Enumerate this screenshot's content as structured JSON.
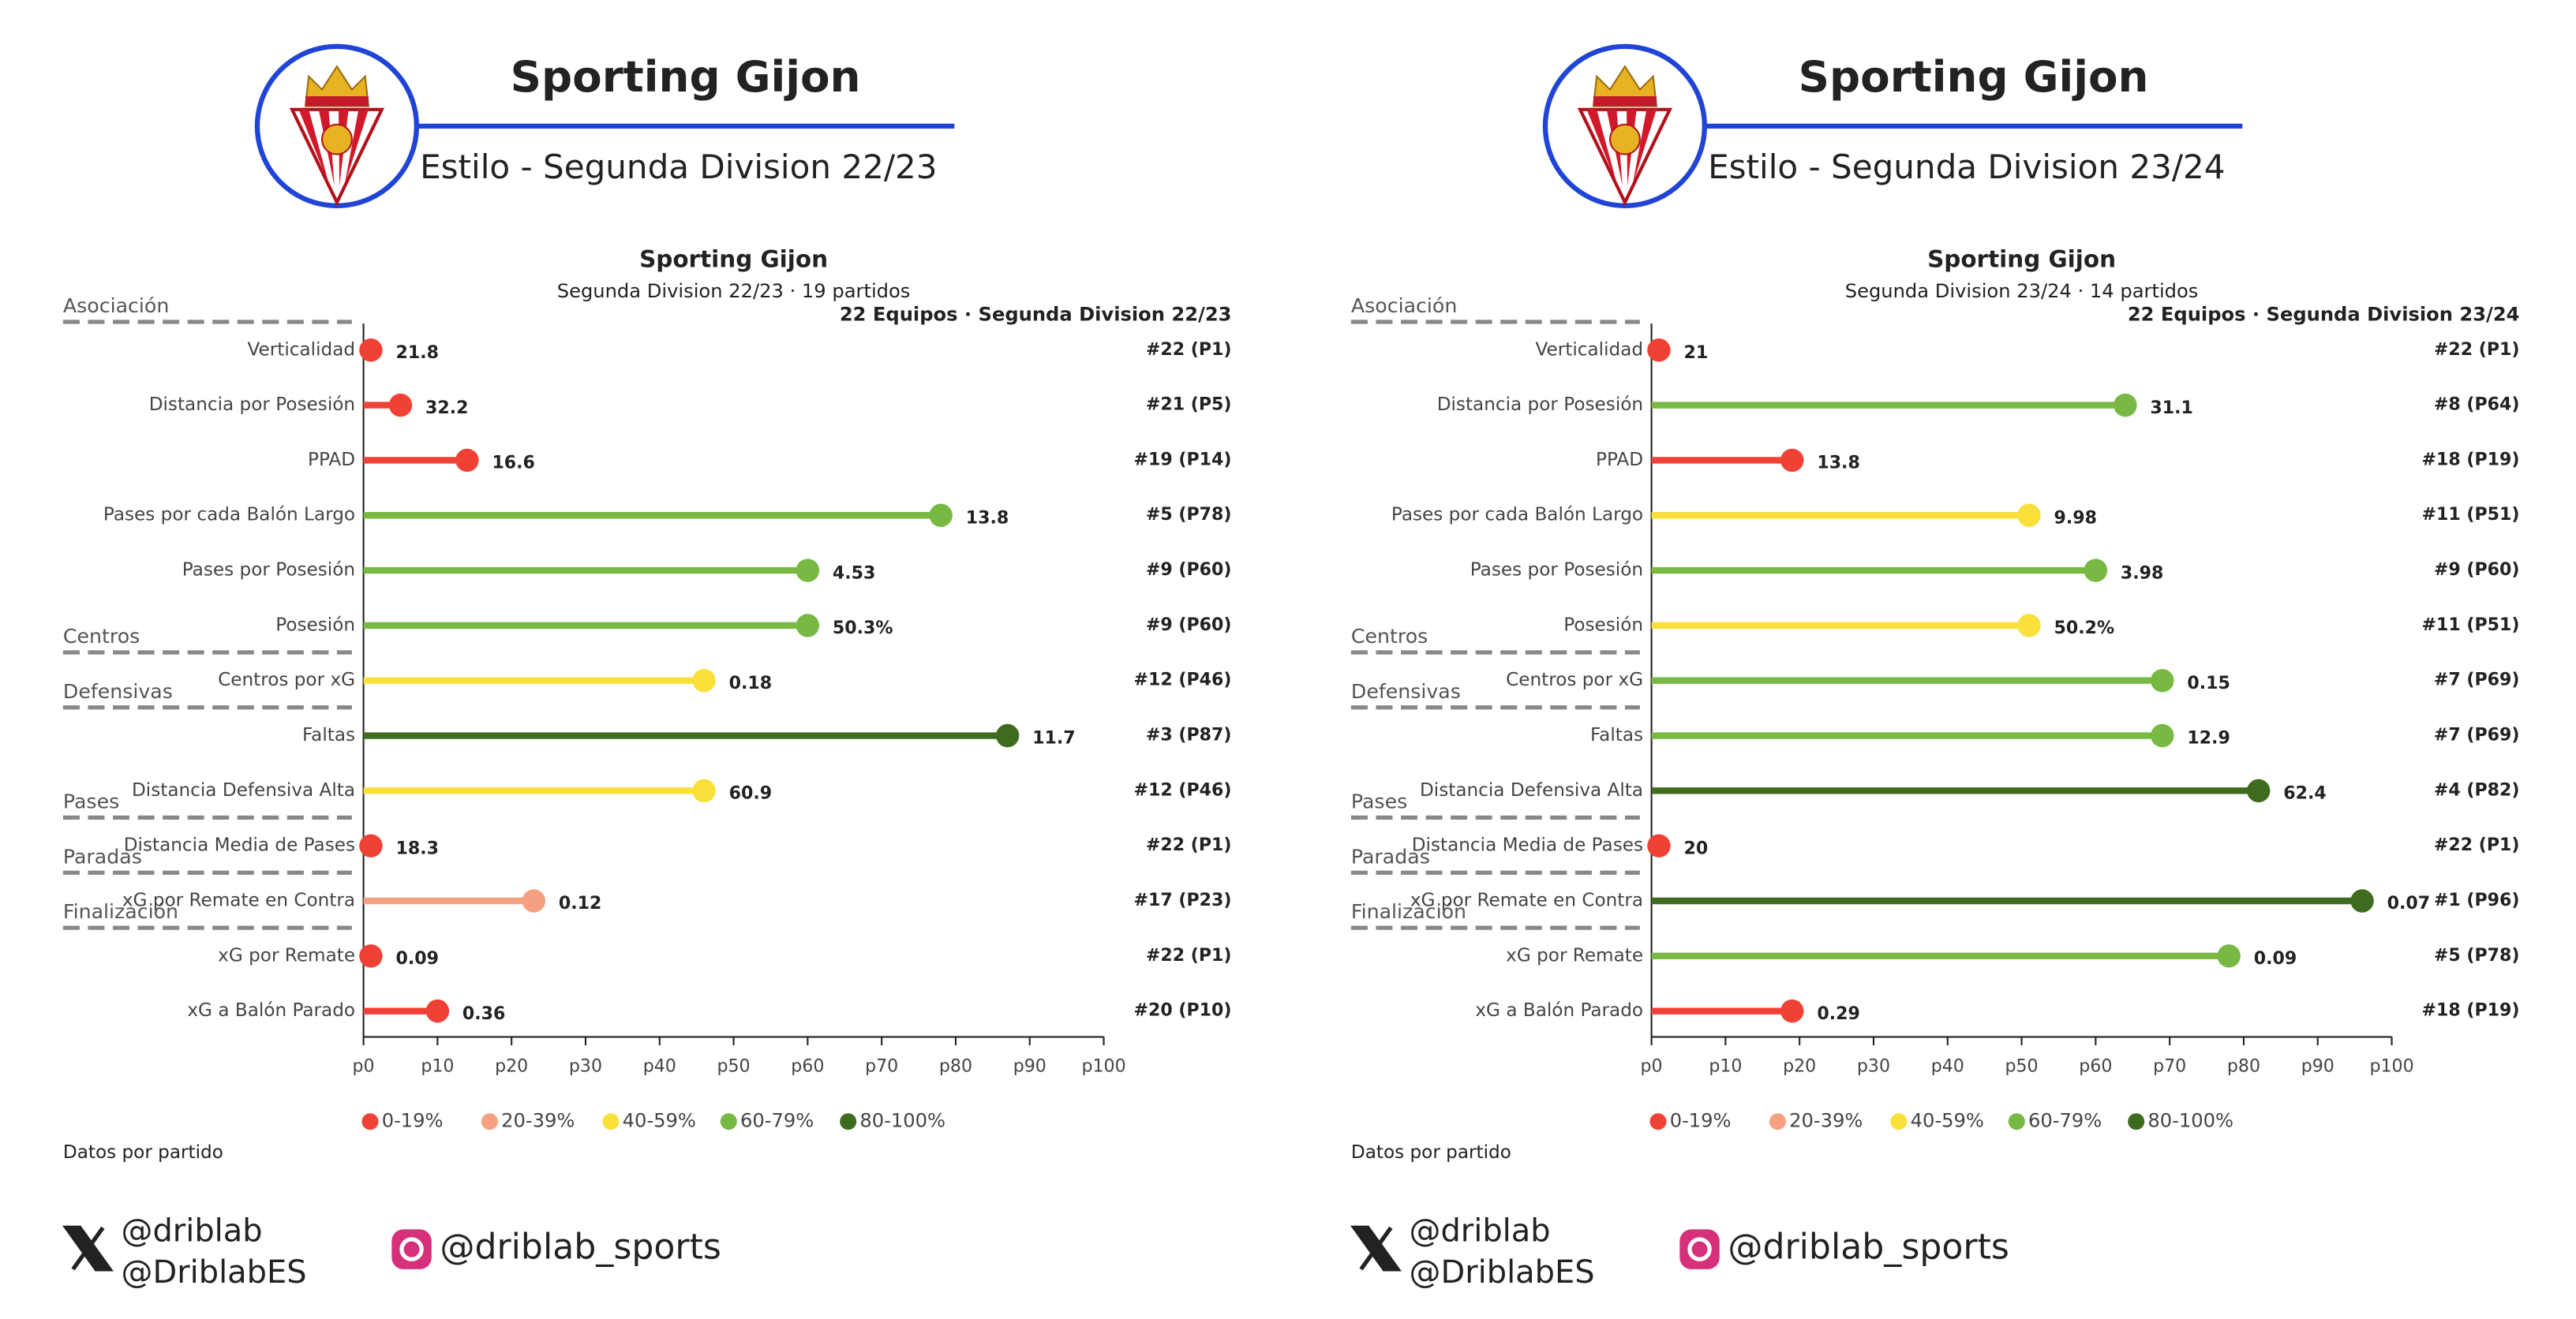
{
  "footer": {
    "x_handle": "@driblab",
    "x_handle_es": "@DriblabES",
    "instagram": "@driblab_sports"
  },
  "chart_data": [
    {
      "type": "lollipop",
      "header_title": "Sporting Gijon",
      "header_subtitle": "Estilo - Segunda Division 22/23",
      "title": "Sporting Gijon",
      "subtitle": "Segunda Division 22/23 · 19 partidos",
      "teams_label": "22 Equipos · Segunda Division 22/23",
      "categories": [
        "Verticalidad",
        "Distancia por Posesión",
        "PPAD",
        "Pases por cada Balón Largo",
        "Pases por Posesión",
        "Posesión",
        "Centros por xG",
        "Faltas",
        "Distancia Defensiva Alta",
        "Distancia Media de Pases",
        "xG por Remate en Contra",
        "xG por Remate",
        "xG a Balón Parado"
      ],
      "values": [
        1,
        5,
        14,
        78,
        60,
        60,
        46,
        87,
        46,
        1,
        23,
        1,
        10
      ],
      "colors": [
        "#ef4135",
        "#ef4135",
        "#ef4135",
        "#78b944",
        "#78b944",
        "#78b944",
        "#f9e03b",
        "#3f6b1f",
        "#f9e03b",
        "#ef4135",
        "#f4a081",
        "#ef4135",
        "#ef4135"
      ],
      "stats": [
        21.8,
        32.2,
        16.6,
        13.8,
        4.53,
        {
          "value": 50.3,
          "label": "50.3%"
        },
        0.18,
        11.7,
        60.9,
        18.3,
        0.12,
        0.09,
        0.36
      ],
      "ranks": [
        "#22 (P1)",
        "#21 (P5)",
        "#19 (P14)",
        "#5 (P78)",
        "#9 (P60)",
        "#9 (P60)",
        "#12 (P46)",
        "#3 (P87)",
        "#12 (P46)",
        "#22 (P1)",
        "#17 (P23)",
        "#22 (P1)",
        "#20 (P10)"
      ],
      "groups": [
        {
          "name": "Asociación",
          "start": 0
        },
        {
          "name": "Centros",
          "start": 6
        },
        {
          "name": "Defensivas",
          "start": 7
        },
        {
          "name": "Pases",
          "start": 9
        },
        {
          "name": "Paradas",
          "start": 10
        },
        {
          "name": "Finalización",
          "start": 11
        }
      ],
      "xlim": [
        0,
        100
      ],
      "xticks": [
        {
          "value": 0,
          "label": "p0"
        },
        {
          "value": 10,
          "label": "p10"
        },
        {
          "value": 20,
          "label": "p20"
        },
        {
          "value": 30,
          "label": "p30"
        },
        {
          "value": 40,
          "label": "p40"
        },
        {
          "value": 50,
          "label": "p50"
        },
        {
          "value": 60,
          "label": "p60"
        },
        {
          "value": 70,
          "label": "p70"
        },
        {
          "value": 80,
          "label": "p80"
        },
        {
          "value": 90,
          "label": "p90"
        },
        {
          "value": 100,
          "label": "p100"
        }
      ],
      "legend": [
        {
          "name": "0-19%",
          "color": "#ef4135"
        },
        {
          "name": "20-39%",
          "color": "#f4a081"
        },
        {
          "name": "40-59%",
          "color": "#f9e03b"
        },
        {
          "name": "60-79%",
          "color": "#78b944"
        },
        {
          "name": "80-100%",
          "color": "#3f6b1f"
        }
      ],
      "note": "Datos por partido"
    },
    {
      "type": "lollipop",
      "header_title": "Sporting Gijon",
      "header_subtitle": "Estilo - Segunda Division 23/24",
      "title": "Sporting Gijon",
      "subtitle": "Segunda Division 23/24 · 14 partidos",
      "teams_label": "22 Equipos · Segunda Division 23/24",
      "categories": [
        "Verticalidad",
        "Distancia por Posesión",
        "PPAD",
        "Pases por cada Balón Largo",
        "Pases por Posesión",
        "Posesión",
        "Centros por xG",
        "Faltas",
        "Distancia Defensiva Alta",
        "Distancia Media de Pases",
        "xG por Remate en Contra",
        "xG por Remate",
        "xG a Balón Parado"
      ],
      "values": [
        1,
        64,
        19,
        51,
        60,
        51,
        69,
        69,
        82,
        1,
        96,
        78,
        19
      ],
      "colors": [
        "#ef4135",
        "#78b944",
        "#ef4135",
        "#f9e03b",
        "#78b944",
        "#f9e03b",
        "#78b944",
        "#78b944",
        "#3f6b1f",
        "#ef4135",
        "#3f6b1f",
        "#78b944",
        "#ef4135"
      ],
      "stats": [
        21,
        31.1,
        13.8,
        9.98,
        3.98,
        {
          "value": 50.2,
          "label": "50.2%"
        },
        0.15,
        12.9,
        62.4,
        20,
        0.07,
        0.09,
        0.29
      ],
      "ranks": [
        "#22 (P1)",
        "#8 (P64)",
        "#18 (P19)",
        "#11 (P51)",
        "#9 (P60)",
        "#11 (P51)",
        "#7 (P69)",
        "#7 (P69)",
        "#4 (P82)",
        "#22 (P1)",
        "#1 (P96)",
        "#5 (P78)",
        "#18 (P19)"
      ],
      "groups": [
        {
          "name": "Asociación",
          "start": 0
        },
        {
          "name": "Centros",
          "start": 6
        },
        {
          "name": "Defensivas",
          "start": 7
        },
        {
          "name": "Pases",
          "start": 9
        },
        {
          "name": "Paradas",
          "start": 10
        },
        {
          "name": "Finalización",
          "start": 11
        }
      ],
      "xlim": [
        0,
        100
      ],
      "xticks": [
        {
          "value": 0,
          "label": "p0"
        },
        {
          "value": 10,
          "label": "p10"
        },
        {
          "value": 20,
          "label": "p20"
        },
        {
          "value": 30,
          "label": "p30"
        },
        {
          "value": 40,
          "label": "p40"
        },
        {
          "value": 50,
          "label": "p50"
        },
        {
          "value": 60,
          "label": "p60"
        },
        {
          "value": 70,
          "label": "p70"
        },
        {
          "value": 80,
          "label": "p80"
        },
        {
          "value": 90,
          "label": "p90"
        },
        {
          "value": 100,
          "label": "p100"
        }
      ],
      "legend": [
        {
          "name": "0-19%",
          "color": "#ef4135"
        },
        {
          "name": "20-39%",
          "color": "#f4a081"
        },
        {
          "name": "40-59%",
          "color": "#f9e03b"
        },
        {
          "name": "60-79%",
          "color": "#78b944"
        },
        {
          "name": "80-100%",
          "color": "#3f6b1f"
        }
      ],
      "note": "Datos por partido"
    }
  ]
}
